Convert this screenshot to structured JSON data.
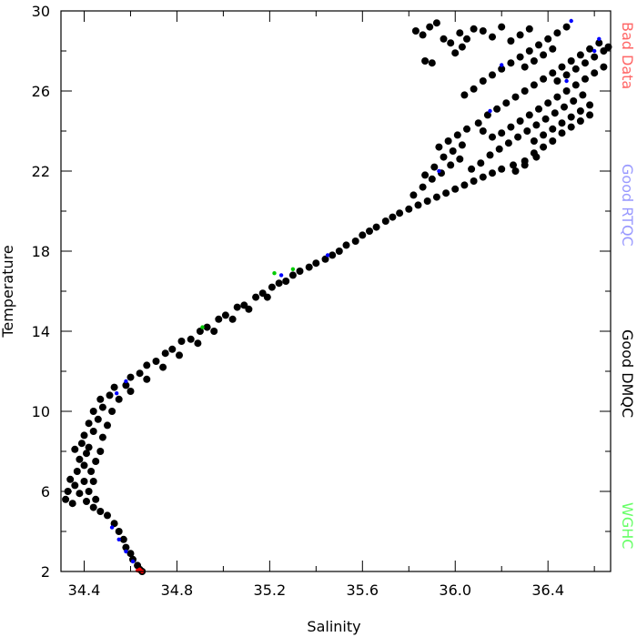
{
  "chart_data": {
    "type": "scatter",
    "title": "",
    "xlabel": "Salinity",
    "ylabel": "Temperature",
    "xlim": [
      34.3,
      36.67
    ],
    "ylim": [
      2,
      30
    ],
    "x_ticks": [
      "34.4",
      "34.8",
      "35.2",
      "35.6",
      "36.0",
      "36.4"
    ],
    "x_tick_values": [
      34.4,
      34.8,
      35.2,
      35.6,
      36.0,
      36.4
    ],
    "y_ticks": [
      "2",
      "6",
      "10",
      "14",
      "18",
      "22",
      "26",
      "30"
    ],
    "y_tick_values": [
      2,
      6,
      10,
      14,
      18,
      22,
      26,
      30
    ],
    "grid": false,
    "legend_placement": "right, vertical",
    "legend": [
      {
        "label": "Bad Data",
        "color": "#ff6666"
      },
      {
        "label": "Good RTQC",
        "color": "#9999ff"
      },
      {
        "label": "Good DMQC",
        "color": "#000000"
      },
      {
        "label": "WGHC",
        "color": "#66ff66"
      }
    ],
    "series": [
      {
        "name": "Good DMQC",
        "color": "#000000",
        "points": [
          [
            34.65,
            2.0
          ],
          [
            34.64,
            2.1
          ],
          [
            34.63,
            2.3
          ],
          [
            34.61,
            2.6
          ],
          [
            34.6,
            2.9
          ],
          [
            34.58,
            3.2
          ],
          [
            34.57,
            3.6
          ],
          [
            34.55,
            4.0
          ],
          [
            34.53,
            4.4
          ],
          [
            34.5,
            4.8
          ],
          [
            34.47,
            5.0
          ],
          [
            34.44,
            5.2
          ],
          [
            34.35,
            5.4
          ],
          [
            34.32,
            5.6
          ],
          [
            34.33,
            6.0
          ],
          [
            34.36,
            6.3
          ],
          [
            34.4,
            6.5
          ],
          [
            34.42,
            6.0
          ],
          [
            34.38,
            5.9
          ],
          [
            34.41,
            5.5
          ],
          [
            34.45,
            5.6
          ],
          [
            34.44,
            6.5
          ],
          [
            34.34,
            6.6
          ],
          [
            34.37,
            7.0
          ],
          [
            34.4,
            7.3
          ],
          [
            34.43,
            7.0
          ],
          [
            34.38,
            7.6
          ],
          [
            34.41,
            7.9
          ],
          [
            34.45,
            7.5
          ],
          [
            34.36,
            8.1
          ],
          [
            34.39,
            8.4
          ],
          [
            34.42,
            8.2
          ],
          [
            34.47,
            8.0
          ],
          [
            34.4,
            8.8
          ],
          [
            34.44,
            9.0
          ],
          [
            34.48,
            8.7
          ],
          [
            34.42,
            9.4
          ],
          [
            34.46,
            9.6
          ],
          [
            34.5,
            9.3
          ],
          [
            34.44,
            10.0
          ],
          [
            34.48,
            10.2
          ],
          [
            34.52,
            10.0
          ],
          [
            34.47,
            10.6
          ],
          [
            34.51,
            10.8
          ],
          [
            34.55,
            10.6
          ],
          [
            34.53,
            11.2
          ],
          [
            34.58,
            11.3
          ],
          [
            34.6,
            11.0
          ],
          [
            34.6,
            11.7
          ],
          [
            34.64,
            11.9
          ],
          [
            34.67,
            11.6
          ],
          [
            34.67,
            12.3
          ],
          [
            34.71,
            12.5
          ],
          [
            34.74,
            12.2
          ],
          [
            34.75,
            12.9
          ],
          [
            34.78,
            13.1
          ],
          [
            34.81,
            12.8
          ],
          [
            34.82,
            13.5
          ],
          [
            34.86,
            13.6
          ],
          [
            34.89,
            13.4
          ],
          [
            34.9,
            14.0
          ],
          [
            34.93,
            14.2
          ],
          [
            34.96,
            14.0
          ],
          [
            34.98,
            14.6
          ],
          [
            35.01,
            14.8
          ],
          [
            35.04,
            14.6
          ],
          [
            35.06,
            15.2
          ],
          [
            35.09,
            15.3
          ],
          [
            35.11,
            15.1
          ],
          [
            35.14,
            15.7
          ],
          [
            35.17,
            15.9
          ],
          [
            35.19,
            15.7
          ],
          [
            35.21,
            16.2
          ],
          [
            35.24,
            16.4
          ],
          [
            35.27,
            16.5
          ],
          [
            35.3,
            16.8
          ],
          [
            35.33,
            17.0
          ],
          [
            35.37,
            17.2
          ],
          [
            35.4,
            17.4
          ],
          [
            35.44,
            17.6
          ],
          [
            35.47,
            17.8
          ],
          [
            35.5,
            18.0
          ],
          [
            35.53,
            18.3
          ],
          [
            35.57,
            18.5
          ],
          [
            35.6,
            18.8
          ],
          [
            35.63,
            19.0
          ],
          [
            35.66,
            19.2
          ],
          [
            35.7,
            19.5
          ],
          [
            35.73,
            19.7
          ],
          [
            35.76,
            19.9
          ],
          [
            35.8,
            20.1
          ],
          [
            35.84,
            20.3
          ],
          [
            35.88,
            20.5
          ],
          [
            35.92,
            20.7
          ],
          [
            35.96,
            20.9
          ],
          [
            36.0,
            21.1
          ],
          [
            36.04,
            21.3
          ],
          [
            36.08,
            21.5
          ],
          [
            36.12,
            21.7
          ],
          [
            36.16,
            21.9
          ],
          [
            36.2,
            22.1
          ],
          [
            36.25,
            22.3
          ],
          [
            36.3,
            22.5
          ],
          [
            36.35,
            22.7
          ],
          [
            35.82,
            20.8
          ],
          [
            35.86,
            21.2
          ],
          [
            35.9,
            21.6
          ],
          [
            35.94,
            21.9
          ],
          [
            35.98,
            22.3
          ],
          [
            36.02,
            22.6
          ],
          [
            35.87,
            21.8
          ],
          [
            35.91,
            22.2
          ],
          [
            35.95,
            22.7
          ],
          [
            35.99,
            23.0
          ],
          [
            36.03,
            23.3
          ],
          [
            35.93,
            23.2
          ],
          [
            35.97,
            23.5
          ],
          [
            36.01,
            23.8
          ],
          [
            36.05,
            24.1
          ],
          [
            36.07,
            22.1
          ],
          [
            36.11,
            22.4
          ],
          [
            36.15,
            22.8
          ],
          [
            36.19,
            23.1
          ],
          [
            36.23,
            23.4
          ],
          [
            36.27,
            23.7
          ],
          [
            36.31,
            24.0
          ],
          [
            36.35,
            24.3
          ],
          [
            36.39,
            24.6
          ],
          [
            36.43,
            24.9
          ],
          [
            36.47,
            25.2
          ],
          [
            36.51,
            25.5
          ],
          [
            36.55,
            25.8
          ],
          [
            36.1,
            24.4
          ],
          [
            36.14,
            24.8
          ],
          [
            36.18,
            25.1
          ],
          [
            36.22,
            25.4
          ],
          [
            36.26,
            25.7
          ],
          [
            36.3,
            26.0
          ],
          [
            36.34,
            26.3
          ],
          [
            36.38,
            26.6
          ],
          [
            36.42,
            26.9
          ],
          [
            36.46,
            27.2
          ],
          [
            36.5,
            27.5
          ],
          [
            36.54,
            27.8
          ],
          [
            36.58,
            28.1
          ],
          [
            36.62,
            28.4
          ],
          [
            36.66,
            28.2
          ],
          [
            36.2,
            23.9
          ],
          [
            36.24,
            24.2
          ],
          [
            36.28,
            24.5
          ],
          [
            36.32,
            24.8
          ],
          [
            36.36,
            25.1
          ],
          [
            36.4,
            25.4
          ],
          [
            36.44,
            25.7
          ],
          [
            36.48,
            26.0
          ],
          [
            36.52,
            26.3
          ],
          [
            36.56,
            26.6
          ],
          [
            36.6,
            26.9
          ],
          [
            36.64,
            27.2
          ],
          [
            36.12,
            26.5
          ],
          [
            36.16,
            26.8
          ],
          [
            36.2,
            27.1
          ],
          [
            36.24,
            27.4
          ],
          [
            36.28,
            27.7
          ],
          [
            36.32,
            28.0
          ],
          [
            36.36,
            28.3
          ],
          [
            36.4,
            28.6
          ],
          [
            36.44,
            28.9
          ],
          [
            36.48,
            29.2
          ],
          [
            36.24,
            28.5
          ],
          [
            36.28,
            28.8
          ],
          [
            36.32,
            29.1
          ],
          [
            36.12,
            29.0
          ],
          [
            36.16,
            28.7
          ],
          [
            36.2,
            29.2
          ],
          [
            36.04,
            25.8
          ],
          [
            36.08,
            26.1
          ],
          [
            36.12,
            24.0
          ],
          [
            36.16,
            23.7
          ],
          [
            36.34,
            23.5
          ],
          [
            36.38,
            23.8
          ],
          [
            36.42,
            24.1
          ],
          [
            36.46,
            24.4
          ],
          [
            36.5,
            24.7
          ],
          [
            36.54,
            25.0
          ],
          [
            36.58,
            25.3
          ],
          [
            36.44,
            26.5
          ],
          [
            36.48,
            26.8
          ],
          [
            36.52,
            27.1
          ],
          [
            36.56,
            27.4
          ],
          [
            36.6,
            27.7
          ],
          [
            36.64,
            28.0
          ],
          [
            36.3,
            27.2
          ],
          [
            36.34,
            27.5
          ],
          [
            36.38,
            27.8
          ],
          [
            36.42,
            28.1
          ],
          [
            35.87,
            27.5
          ],
          [
            35.9,
            27.4
          ],
          [
            35.83,
            29.0
          ],
          [
            35.86,
            28.8
          ],
          [
            35.89,
            29.2
          ],
          [
            35.92,
            29.4
          ],
          [
            35.95,
            28.6
          ],
          [
            35.98,
            28.4
          ],
          [
            36.02,
            28.9
          ],
          [
            36.05,
            28.6
          ],
          [
            36.08,
            29.1
          ],
          [
            36.0,
            27.9
          ],
          [
            36.03,
            28.2
          ],
          [
            36.26,
            22.0
          ],
          [
            36.3,
            22.3
          ],
          [
            36.34,
            22.9
          ],
          [
            36.38,
            23.2
          ],
          [
            36.42,
            23.5
          ],
          [
            36.46,
            23.9
          ],
          [
            36.5,
            24.2
          ],
          [
            36.54,
            24.5
          ],
          [
            36.58,
            24.8
          ]
        ]
      },
      {
        "name": "Good RTQC",
        "color": "#0000ff",
        "points": [
          [
            34.52,
            4.2
          ],
          [
            34.55,
            3.6
          ],
          [
            34.58,
            3.0
          ],
          [
            34.61,
            2.5
          ],
          [
            34.54,
            10.9
          ],
          [
            34.58,
            11.5
          ],
          [
            35.25,
            16.8
          ],
          [
            35.45,
            17.8
          ],
          [
            36.5,
            29.5
          ],
          [
            36.6,
            28.0
          ],
          [
            36.62,
            28.6
          ],
          [
            36.48,
            26.5
          ],
          [
            36.15,
            25.0
          ],
          [
            36.2,
            27.3
          ],
          [
            35.93,
            22.0
          ]
        ]
      },
      {
        "name": "Bad Data",
        "color": "#ff0000",
        "points": [
          [
            34.63,
            2.05
          ],
          [
            34.64,
            2.1
          ],
          [
            34.65,
            2.0
          ]
        ]
      },
      {
        "name": "WGHC",
        "color": "#00cc00",
        "points": [
          [
            34.91,
            14.2
          ],
          [
            35.22,
            16.9
          ],
          [
            35.3,
            17.1
          ]
        ]
      }
    ]
  }
}
